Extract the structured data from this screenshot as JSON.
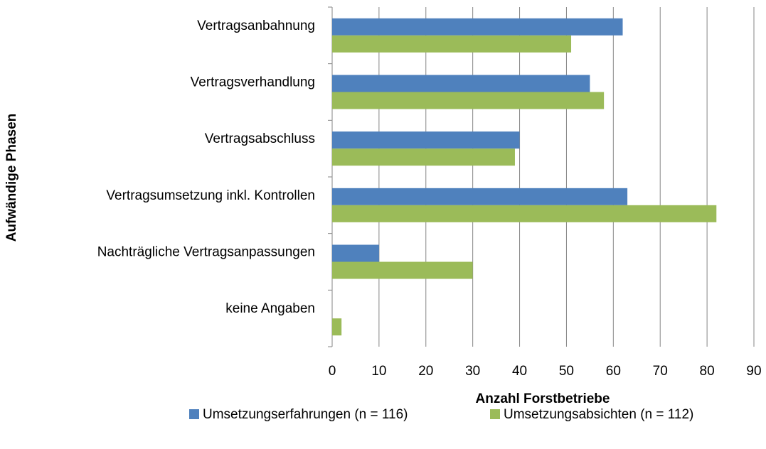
{
  "chart_data": {
    "type": "bar",
    "orientation": "horizontal",
    "xlabel": "Anzahl Forstbetriebe",
    "ylabel": "Aufwändige Phasen",
    "categories": [
      "Vertragsanbahnung",
      "Vertragsverhandlung",
      "Vertragsabschluss",
      "Vertragsumsetzung inkl. Kontrollen",
      "Nachträgliche Vertragsanpassungen",
      "keine Angaben"
    ],
    "series": [
      {
        "name": "Umsetzungserfahrungen (n = 116)",
        "color": "#4f81bd",
        "values": [
          62,
          55,
          40,
          63,
          10,
          0
        ]
      },
      {
        "name": "Umsetzungsabsichten (n = 112)",
        "color": "#9bbb59",
        "values": [
          51,
          58,
          39,
          82,
          30,
          2
        ]
      }
    ],
    "xlim": [
      0,
      90
    ],
    "xticks": [
      0,
      10,
      20,
      30,
      40,
      50,
      60,
      70,
      80,
      90
    ],
    "grid": true,
    "legend": "bottom"
  }
}
